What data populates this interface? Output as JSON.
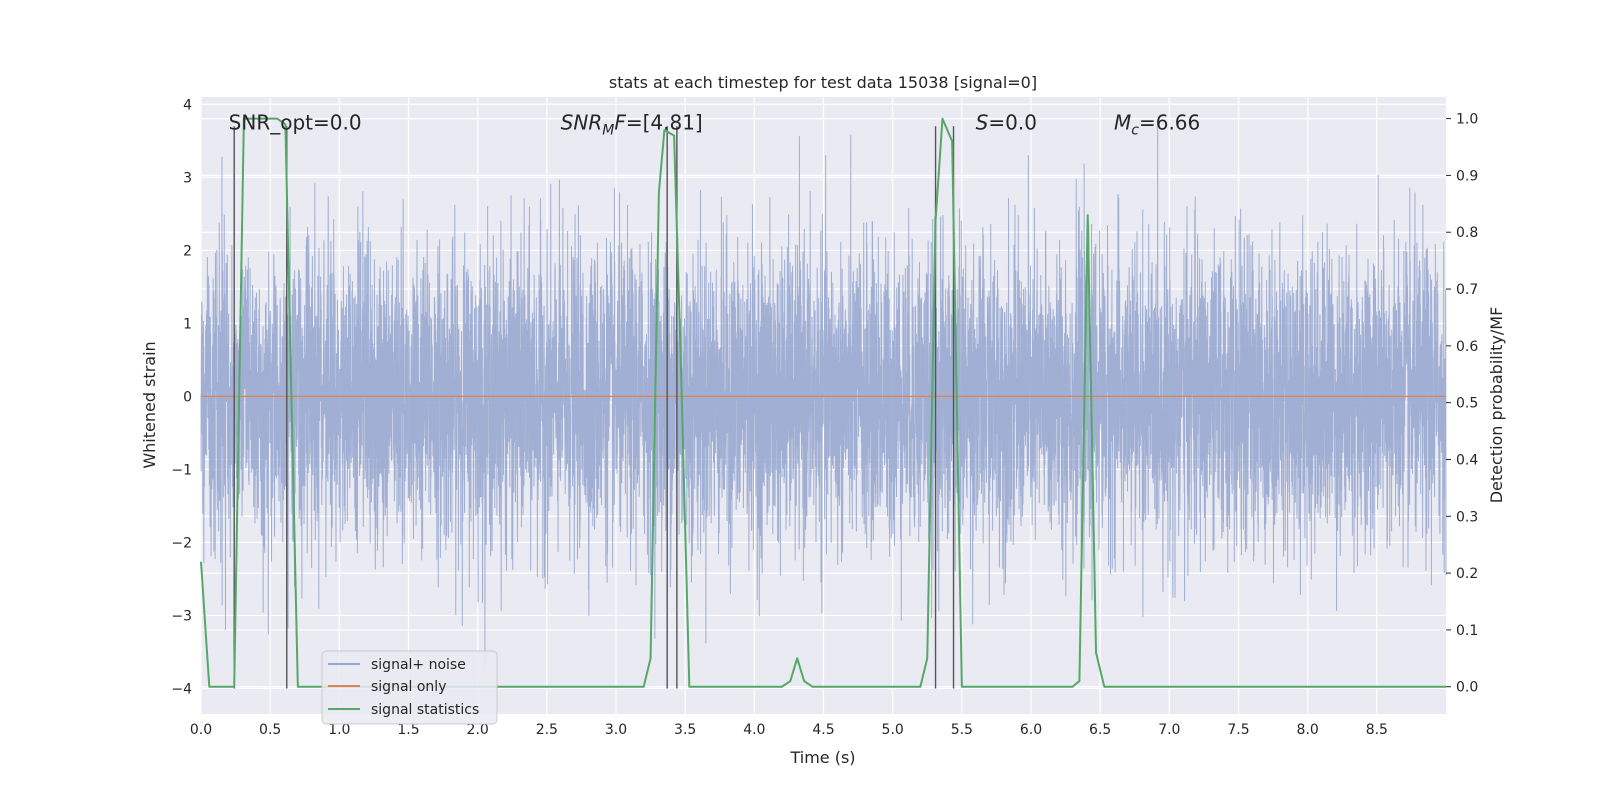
{
  "chart_data": {
    "type": "line",
    "title": "stats at each timestep for test data 15038 [signal=0]",
    "xlabel": "Time (s)",
    "ylabel": "Whitened strain",
    "y2label": "Detection probability/MF",
    "xlim": [
      0.0,
      9.0
    ],
    "ylim": [
      -4.35,
      4.1
    ],
    "y2lim": [
      -0.048,
      1.038
    ],
    "x_ticks": [
      0.0,
      0.5,
      1.0,
      1.5,
      2.0,
      2.5,
      3.0,
      3.5,
      4.0,
      4.5,
      5.0,
      5.5,
      6.0,
      6.5,
      7.0,
      7.5,
      8.0,
      8.5
    ],
    "x_tick_labels": [
      "0.0",
      "0.5",
      "1.0",
      "1.5",
      "2.0",
      "2.5",
      "3.0",
      "3.5",
      "4.0",
      "4.5",
      "5.0",
      "5.5",
      "6.0",
      "6.5",
      "7.0",
      "7.5",
      "8.0",
      "8.5"
    ],
    "y_ticks": [
      4,
      3,
      2,
      1,
      0,
      -1,
      -2,
      -3,
      -4
    ],
    "y_tick_labels": [
      "4",
      "3",
      "2",
      "1",
      "0",
      "−1",
      "−2",
      "−3",
      "−4"
    ],
    "y2_ticks": [
      1.0,
      0.9,
      0.8,
      0.7,
      0.6,
      0.5,
      0.4,
      0.3,
      0.2,
      0.1,
      0.0
    ],
    "y2_tick_labels": [
      "1.0",
      "0.9",
      "0.8",
      "0.7",
      "0.6",
      "0.5",
      "0.4",
      "0.3",
      "0.2",
      "0.1",
      "0.0"
    ],
    "grid": true,
    "legend_position": "lower-left",
    "annotations": [
      {
        "x": 0.2,
        "y": 3.75,
        "parts": [
          {
            "text": "SNR_opt=0.0"
          }
        ]
      },
      {
        "x": 2.6,
        "y": 3.75,
        "parts": [
          {
            "text": "SNR",
            "style": "italic"
          },
          {
            "text": "M",
            "style": "italic-sub"
          },
          {
            "text": "F",
            "style": "italic"
          },
          {
            "text": "=[4.81]"
          }
        ]
      },
      {
        "x": 5.6,
        "y": 3.75,
        "parts": [
          {
            "text": "S",
            "style": "italic"
          },
          {
            "text": "=0.0"
          }
        ]
      },
      {
        "x": 6.6,
        "y": 3.75,
        "parts": [
          {
            "text": "M",
            "style": "italic"
          },
          {
            "text": "c",
            "style": "italic-sub"
          },
          {
            "text": "=6.66"
          }
        ]
      }
    ],
    "vlines": {
      "x": [
        0.24,
        0.62,
        3.37,
        3.44,
        5.31,
        5.44
      ],
      "ymin": -4.0,
      "ymax": 3.7,
      "color": "#555555"
    },
    "series": [
      {
        "name": "signal+ noise",
        "color": "#98A9CF",
        "axis": "left",
        "kind": "dense_noise",
        "samples": 8192,
        "x_range": [
          0.0,
          9.0
        ],
        "approx_sigma": 1.0
      },
      {
        "name": "signal only",
        "color": "#DD8452",
        "axis": "left",
        "x": [
          0.0,
          9.0
        ],
        "y": [
          0.0,
          0.0
        ]
      },
      {
        "name": "signal statistics",
        "color": "#55A868",
        "axis": "right",
        "x": [
          0.0,
          0.06,
          0.12,
          0.24,
          0.31,
          0.36,
          0.55,
          0.61,
          0.7,
          1.0,
          3.2,
          3.25,
          3.31,
          3.35,
          3.42,
          3.47,
          3.53,
          3.6,
          4.2,
          4.26,
          4.31,
          4.36,
          4.42,
          4.5,
          5.2,
          5.25,
          5.31,
          5.36,
          5.43,
          5.5,
          6.3,
          6.35,
          6.41,
          6.47,
          6.53,
          6.6,
          9.0
        ],
        "y": [
          0.22,
          0.0,
          0.0,
          0.0,
          1.0,
          1.0,
          1.0,
          0.99,
          0.0,
          0.0,
          0.0,
          0.05,
          0.87,
          0.98,
          0.97,
          0.56,
          0.0,
          0.0,
          0.0,
          0.01,
          0.05,
          0.01,
          0.0,
          0.0,
          0.0,
          0.05,
          0.82,
          1.0,
          0.96,
          0.0,
          0.0,
          0.01,
          0.83,
          0.06,
          0.0,
          0.0,
          0.0
        ]
      }
    ]
  }
}
